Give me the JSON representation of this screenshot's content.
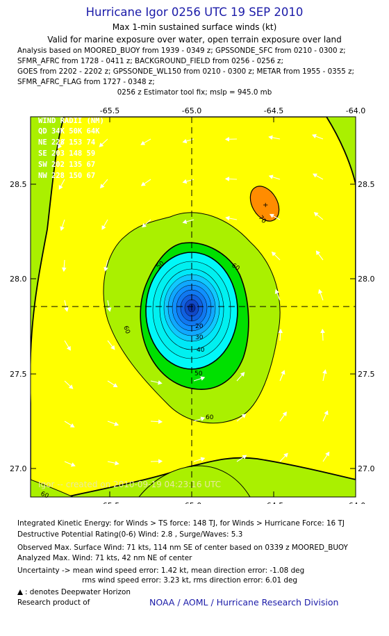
{
  "header": {
    "title": "Hurricane Igor 0256 UTC 19 SEP 2010",
    "subtitle1": "Max 1-min sustained surface winds (kt)",
    "subtitle2": "Valid for marine exposure over water, open terrain exposure over land",
    "analysis": [
      "Analysis based on MOORED_BUOY from 1939 - 0349 z; GPSSONDE_SFC from 0210 - 0300 z;",
      "SFMR_AFRC from 1728 - 0411 z; BACKGROUND_FIELD from 0256 - 0256 z;",
      "GOES from 2202 - 2202 z; GPSSONDE_WL150 from 0210 - 0300 z; METAR from 1955 - 0355 z;",
      "SFMR_AFRC_FLAG from 1727 - 0348 z;"
    ],
    "estimator": "0256 z Estimator tool fix; mslp = 945.0 mb"
  },
  "map": {
    "x_ticks": [
      "-65.5",
      "-65.0",
      "-64.5",
      "-64.0"
    ],
    "y_ticks": [
      "28.5",
      "28.0",
      "27.5",
      "27.0"
    ],
    "wind_radii": {
      "title": "WIND RADII (NM)",
      "header": "QD  34K  50K  64K",
      "rows": [
        "NE  228  153   74",
        "SE  203  148   59",
        "SW  202  135   67",
        "NW  228  150   67"
      ]
    },
    "contour_labels": [
      "20",
      "30",
      "40",
      "50",
      "60",
      "50",
      "60",
      "60",
      "70",
      "60",
      "60"
    ],
    "credit": "Igor -- created on 2010-09-19 04:23:16 UTC",
    "colors": {
      "background": "#aaf000",
      "yellow": "#ffff00",
      "green": "#00e000",
      "cyan": "#00f8f8",
      "blue": "#1060ff",
      "orange": "#ff8c00"
    }
  },
  "footer": {
    "ike": "Integrated Kinetic Energy:  for Winds > TS force: 148 TJ,  for Winds > Hurricane Force: 16 TJ",
    "dpr": "Destructive Potential Rating(0-6)   Wind: 2.8 , Surge/Waves: 5.3",
    "observed": "Observed Max. Surface Wind: 71 kts, 114 nm SE of center based on 0339 z MOORED_BUOY",
    "analyzed": "Analyzed Max. Wind: 71 kts, 42 nm NE of center",
    "uncert1": "Uncertainty -> mean wind speed error: 1.42 kt,   mean direction error:  -1.08 deg",
    "uncert2": "rms wind speed error: 3.23 kt,   rms direction error: 6.01 deg",
    "deepwater": ": denotes Deepwater Horizon",
    "research": "Research product of",
    "noaa": "NOAA / AOML / Hurricane Research Division"
  }
}
